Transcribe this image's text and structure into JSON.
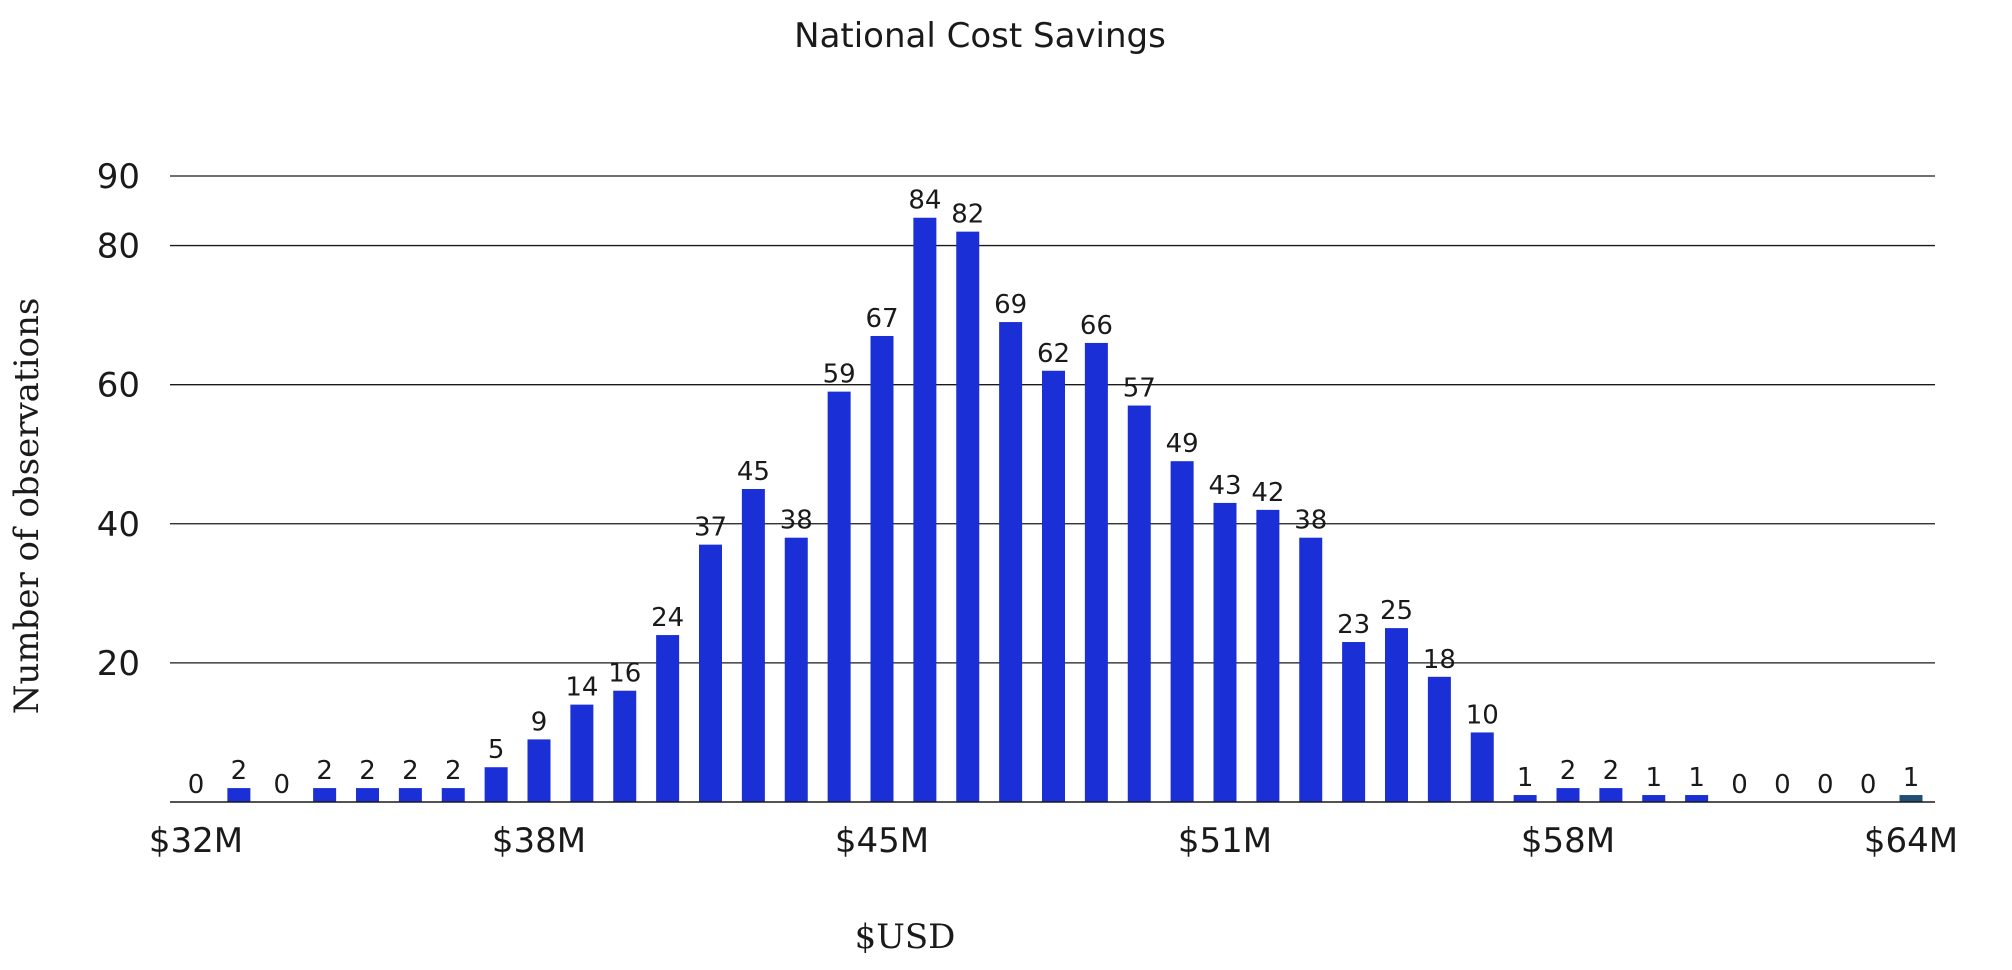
{
  "chart_data": {
    "type": "bar",
    "title": "National Cost Savings",
    "xlabel": "$USD",
    "ylabel": "Number of observations",
    "ylim": [
      0,
      90
    ],
    "yticks": [
      20,
      40,
      60,
      80,
      90
    ],
    "xtick_labels": [
      "$32M",
      "$38M",
      "$45M",
      "$51M",
      "$58M",
      "$64M"
    ],
    "xtick_bar_index": [
      0,
      8,
      16,
      24,
      32,
      40
    ],
    "grid": true,
    "legend": "none",
    "bar_color": "#1a2fd6",
    "last_bar_color": "#1f4f73",
    "values": [
      0,
      2,
      0,
      2,
      2,
      2,
      2,
      5,
      9,
      14,
      16,
      24,
      37,
      45,
      38,
      59,
      67,
      84,
      82,
      69,
      62,
      66,
      57,
      49,
      43,
      42,
      38,
      23,
      25,
      18,
      10,
      1,
      2,
      2,
      1,
      1,
      0,
      0,
      0,
      0,
      1
    ]
  }
}
